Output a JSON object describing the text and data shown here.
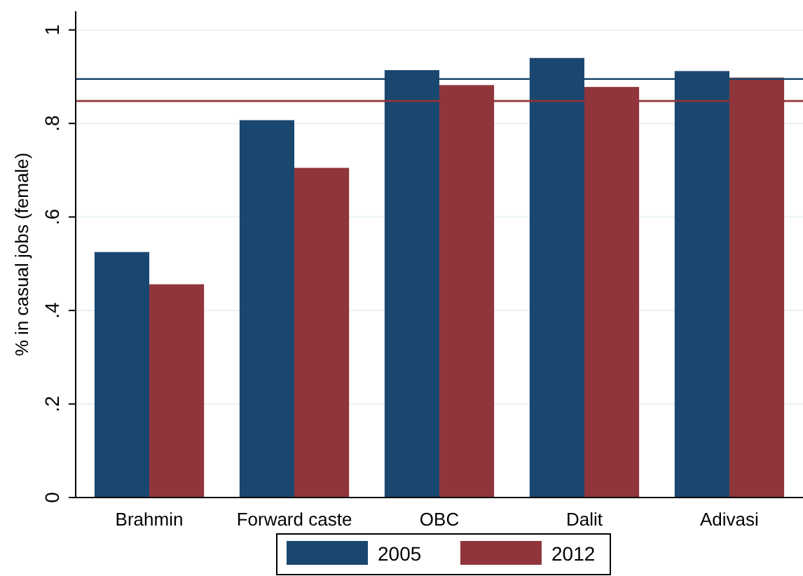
{
  "chart_data": {
    "type": "bar",
    "ylabel": "% in casual jobs (female)",
    "categories": [
      "Brahmin",
      "Forward caste",
      "OBC",
      "Dalit",
      "Adivasi"
    ],
    "series": [
      {
        "name": "2005",
        "color": "#1a476f",
        "values": [
          0.525,
          0.807,
          0.914,
          0.94,
          0.912
        ]
      },
      {
        "name": "2012",
        "color": "#90353b",
        "values": [
          0.456,
          0.705,
          0.882,
          0.878,
          0.898
        ]
      }
    ],
    "ylim": [
      0,
      1.04
    ],
    "yticks": [
      {
        "value": 0,
        "label": "0"
      },
      {
        "value": 0.2,
        "label": ".2"
      },
      {
        "value": 0.4,
        "label": ".4"
      },
      {
        "value": 0.6,
        "label": ".6"
      },
      {
        "value": 0.8,
        "label": ".8"
      },
      {
        "value": 1,
        "label": "1"
      }
    ],
    "ref_lines": [
      {
        "axis": "y",
        "value": 0.895,
        "color": "#1a476f"
      },
      {
        "axis": "y",
        "value": 0.848,
        "color": "#90353b"
      }
    ],
    "grid": "y",
    "legend": "bottom"
  }
}
